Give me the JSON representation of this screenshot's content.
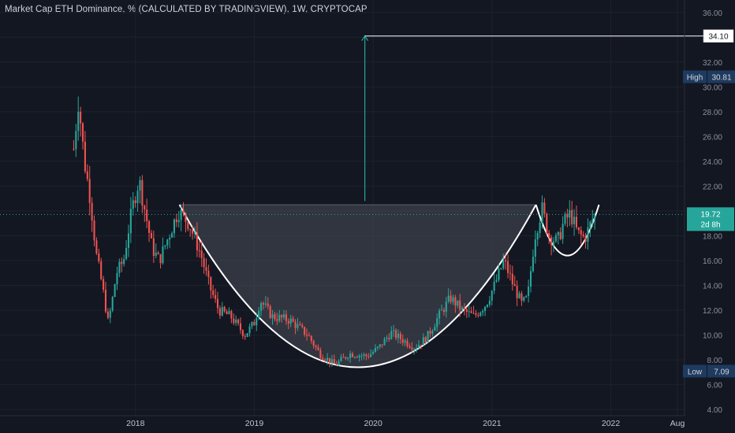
{
  "title": "Market Cap ETH Dominance, % (CALCULATED BY TRADINGVIEW), 1W, CRYPTOCAP",
  "colors": {
    "background": "#131722",
    "grid": "#1e222d",
    "up": "#26a69a",
    "down": "#ef5350",
    "pattern_fill": "#4a4e5a",
    "target_line": "#ffffff",
    "arrow": "#26a69a",
    "high_low_badge": "#1e3a5f",
    "price_badge": "#26a69a"
  },
  "chart_data": {
    "type": "candlestick",
    "x_tick_labels": [
      "2018",
      "2019",
      "2020",
      "2021",
      "2022",
      "Aug"
    ],
    "y_tick_labels": [
      "4.00",
      "6.00",
      "8.00",
      "10.00",
      "12.00",
      "14.00",
      "16.00",
      "18.00",
      "20.00",
      "22.00",
      "24.00",
      "26.00",
      "28.00",
      "30.00",
      "32.00",
      "34.00",
      "36.00"
    ],
    "ylim": [
      3.5,
      37
    ],
    "x_range_years": [
      2016.86,
      2022.62
    ],
    "grid": true,
    "annotations": {
      "target_label": "34.10",
      "target_value": 34.1,
      "high_label": "High",
      "high_value_label": "30.81",
      "high_value": 30.81,
      "low_label": "Low",
      "low_value_label": "7.09",
      "low_value": 7.09,
      "last_price_label": "19.72",
      "last_price": 19.72,
      "countdown_label": "2d 8h"
    },
    "pattern": {
      "name": "cup-and-handle",
      "rim_value": 20.5,
      "cup_start_year": 2018.37,
      "cup_end_year": 2021.37,
      "cup_bottom_value": 7.4,
      "handle_end_year": 2021.9,
      "handle_bottom_value": 16.4
    },
    "anchors": [
      [
        2017.48,
        25.0
      ],
      [
        2017.52,
        29.0
      ],
      [
        2017.57,
        24.0
      ],
      [
        2017.62,
        21.0
      ],
      [
        2017.67,
        16.5
      ],
      [
        2017.72,
        14.0
      ],
      [
        2017.77,
        11.0
      ],
      [
        2017.8,
        12.5
      ],
      [
        2017.84,
        15.0
      ],
      [
        2017.9,
        16.0
      ],
      [
        2017.95,
        19.0
      ],
      [
        2017.99,
        21.0
      ],
      [
        2018.03,
        22.5
      ],
      [
        2018.08,
        20.0
      ],
      [
        2018.14,
        17.0
      ],
      [
        2018.2,
        16.0
      ],
      [
        2018.28,
        18.0
      ],
      [
        2018.36,
        20.0
      ],
      [
        2018.45,
        19.0
      ],
      [
        2018.55,
        16.5
      ],
      [
        2018.62,
        14.0
      ],
      [
        2018.7,
        12.0
      ],
      [
        2018.8,
        11.5
      ],
      [
        2018.92,
        10.0
      ],
      [
        2019.0,
        11.0
      ],
      [
        2019.05,
        12.8
      ],
      [
        2019.15,
        11.5
      ],
      [
        2019.3,
        11.2
      ],
      [
        2019.45,
        10.0
      ],
      [
        2019.55,
        8.5
      ],
      [
        2019.68,
        7.6
      ],
      [
        2019.8,
        8.5
      ],
      [
        2019.95,
        8.3
      ],
      [
        2020.05,
        9.0
      ],
      [
        2020.15,
        10.2
      ],
      [
        2020.25,
        9.6
      ],
      [
        2020.35,
        9.0
      ],
      [
        2020.45,
        9.8
      ],
      [
        2020.55,
        11.5
      ],
      [
        2020.65,
        13.0
      ],
      [
        2020.75,
        12.0
      ],
      [
        2020.85,
        11.5
      ],
      [
        2020.95,
        12.5
      ],
      [
        2021.02,
        14.0
      ],
      [
        2021.1,
        16.0
      ],
      [
        2021.18,
        14.0
      ],
      [
        2021.25,
        12.5
      ],
      [
        2021.3,
        13.0
      ],
      [
        2021.36,
        18.0
      ],
      [
        2021.42,
        20.2
      ],
      [
        2021.48,
        18.0
      ],
      [
        2021.55,
        17.5
      ],
      [
        2021.6,
        19.0
      ],
      [
        2021.66,
        19.8
      ],
      [
        2021.72,
        18.2
      ],
      [
        2021.78,
        17.8
      ],
      [
        2021.85,
        19.4
      ],
      [
        2021.88,
        19.72
      ]
    ]
  }
}
